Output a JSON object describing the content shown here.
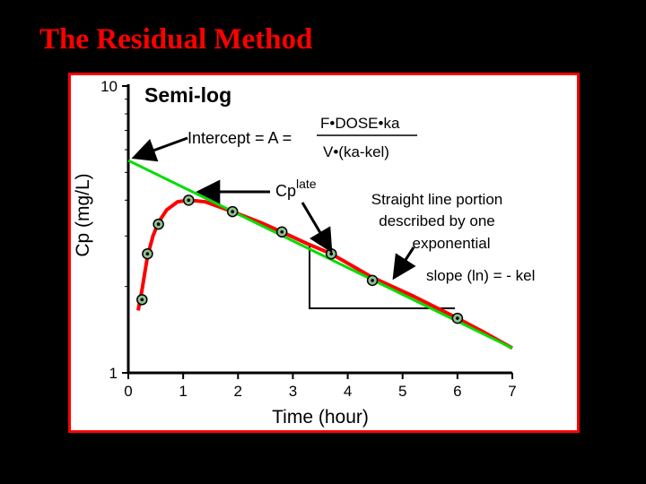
{
  "slide": {
    "title": "The Residual Method"
  },
  "colors": {
    "background": "#000000",
    "title": "#ff0000",
    "frame_border": "#ff0000",
    "observed_curve": "#ff0000",
    "terminal_line": "#00dd00",
    "marker_fill": "#8fbf8f"
  },
  "chart_data": {
    "type": "line",
    "title": "Semi-log",
    "xlabel": "Time (hour)",
    "ylabel": "Cp (mg/L)",
    "yscale": "log",
    "xlim": [
      0,
      7
    ],
    "ylim": [
      1,
      10
    ],
    "x_ticks": [
      "0",
      "1",
      "2",
      "3",
      "4",
      "5",
      "6",
      "7"
    ],
    "y_ticks": [
      "1",
      "10"
    ],
    "grid": false,
    "series": [
      {
        "role": "observed",
        "color": "#ff0000",
        "points": [
          {
            "x": 0.25,
            "y": 1.8
          },
          {
            "x": 0.35,
            "y": 2.6
          },
          {
            "x": 0.55,
            "y": 3.3
          },
          {
            "x": 1.1,
            "y": 4.0
          },
          {
            "x": 1.9,
            "y": 3.65
          },
          {
            "x": 2.8,
            "y": 3.1
          },
          {
            "x": 3.7,
            "y": 2.6
          },
          {
            "x": 4.45,
            "y": 2.1
          },
          {
            "x": 6.0,
            "y": 1.55
          }
        ],
        "curve": [
          [
            0.18,
            1.65
          ],
          [
            0.25,
            1.95
          ],
          [
            0.35,
            2.55
          ],
          [
            0.45,
            3.0
          ],
          [
            0.55,
            3.35
          ],
          [
            0.7,
            3.7
          ],
          [
            0.9,
            3.95
          ],
          [
            1.1,
            4.0
          ],
          [
            1.4,
            3.95
          ],
          [
            1.9,
            3.65
          ],
          [
            2.4,
            3.35
          ],
          [
            2.8,
            3.1
          ],
          [
            3.3,
            2.8
          ],
          [
            3.7,
            2.6
          ],
          [
            4.45,
            2.15
          ],
          [
            5.2,
            1.85
          ],
          [
            6.0,
            1.55
          ],
          [
            6.5,
            1.38
          ],
          [
            7.0,
            1.22
          ]
        ]
      },
      {
        "role": "terminal-line",
        "color": "#00dd00",
        "points": [
          {
            "x": 0.0,
            "y": 5.5
          },
          {
            "x": 7.0,
            "y": 1.22
          }
        ]
      }
    ],
    "annotations": {
      "intercept_text": "Intercept = A =",
      "numerator": "F•DOSE•ka",
      "denominator": "V•(ka-kel)",
      "cp_base": "Cp",
      "cp_sup": "late",
      "straight_line": [
        "Straight line portion",
        "described by one",
        "exponential"
      ],
      "slope_text": "slope (ln) = - kel"
    }
  }
}
